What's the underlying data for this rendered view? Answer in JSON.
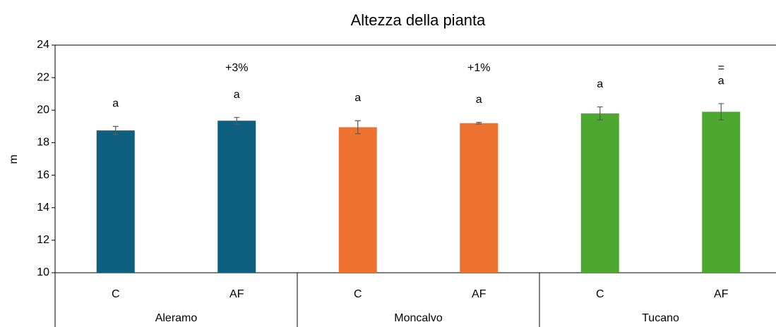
{
  "chart_data": {
    "type": "bar",
    "title": "Altezza della pianta",
    "ylabel": "m",
    "categories": [
      "C",
      "AF",
      "C",
      "AF",
      "C",
      "AF"
    ],
    "groups": [
      "Aleramo",
      "Moncalvo",
      "Tucano"
    ],
    "colors": [
      "#0f5f80",
      "#ed7230",
      "#4ea72e"
    ],
    "values": [
      18.75,
      19.35,
      18.95,
      19.2,
      19.8,
      19.9
    ],
    "errors": [
      0.25,
      0.2,
      0.4,
      0.05,
      0.4,
      0.5
    ],
    "letters": [
      "a",
      "a",
      "a",
      "a",
      "a",
      "a"
    ],
    "changes": [
      null,
      "+3%",
      null,
      "+1%",
      null,
      "="
    ],
    "ylim": [
      10,
      24
    ],
    "yticks": [
      10,
      12,
      14,
      16,
      18,
      20,
      22,
      24
    ]
  }
}
